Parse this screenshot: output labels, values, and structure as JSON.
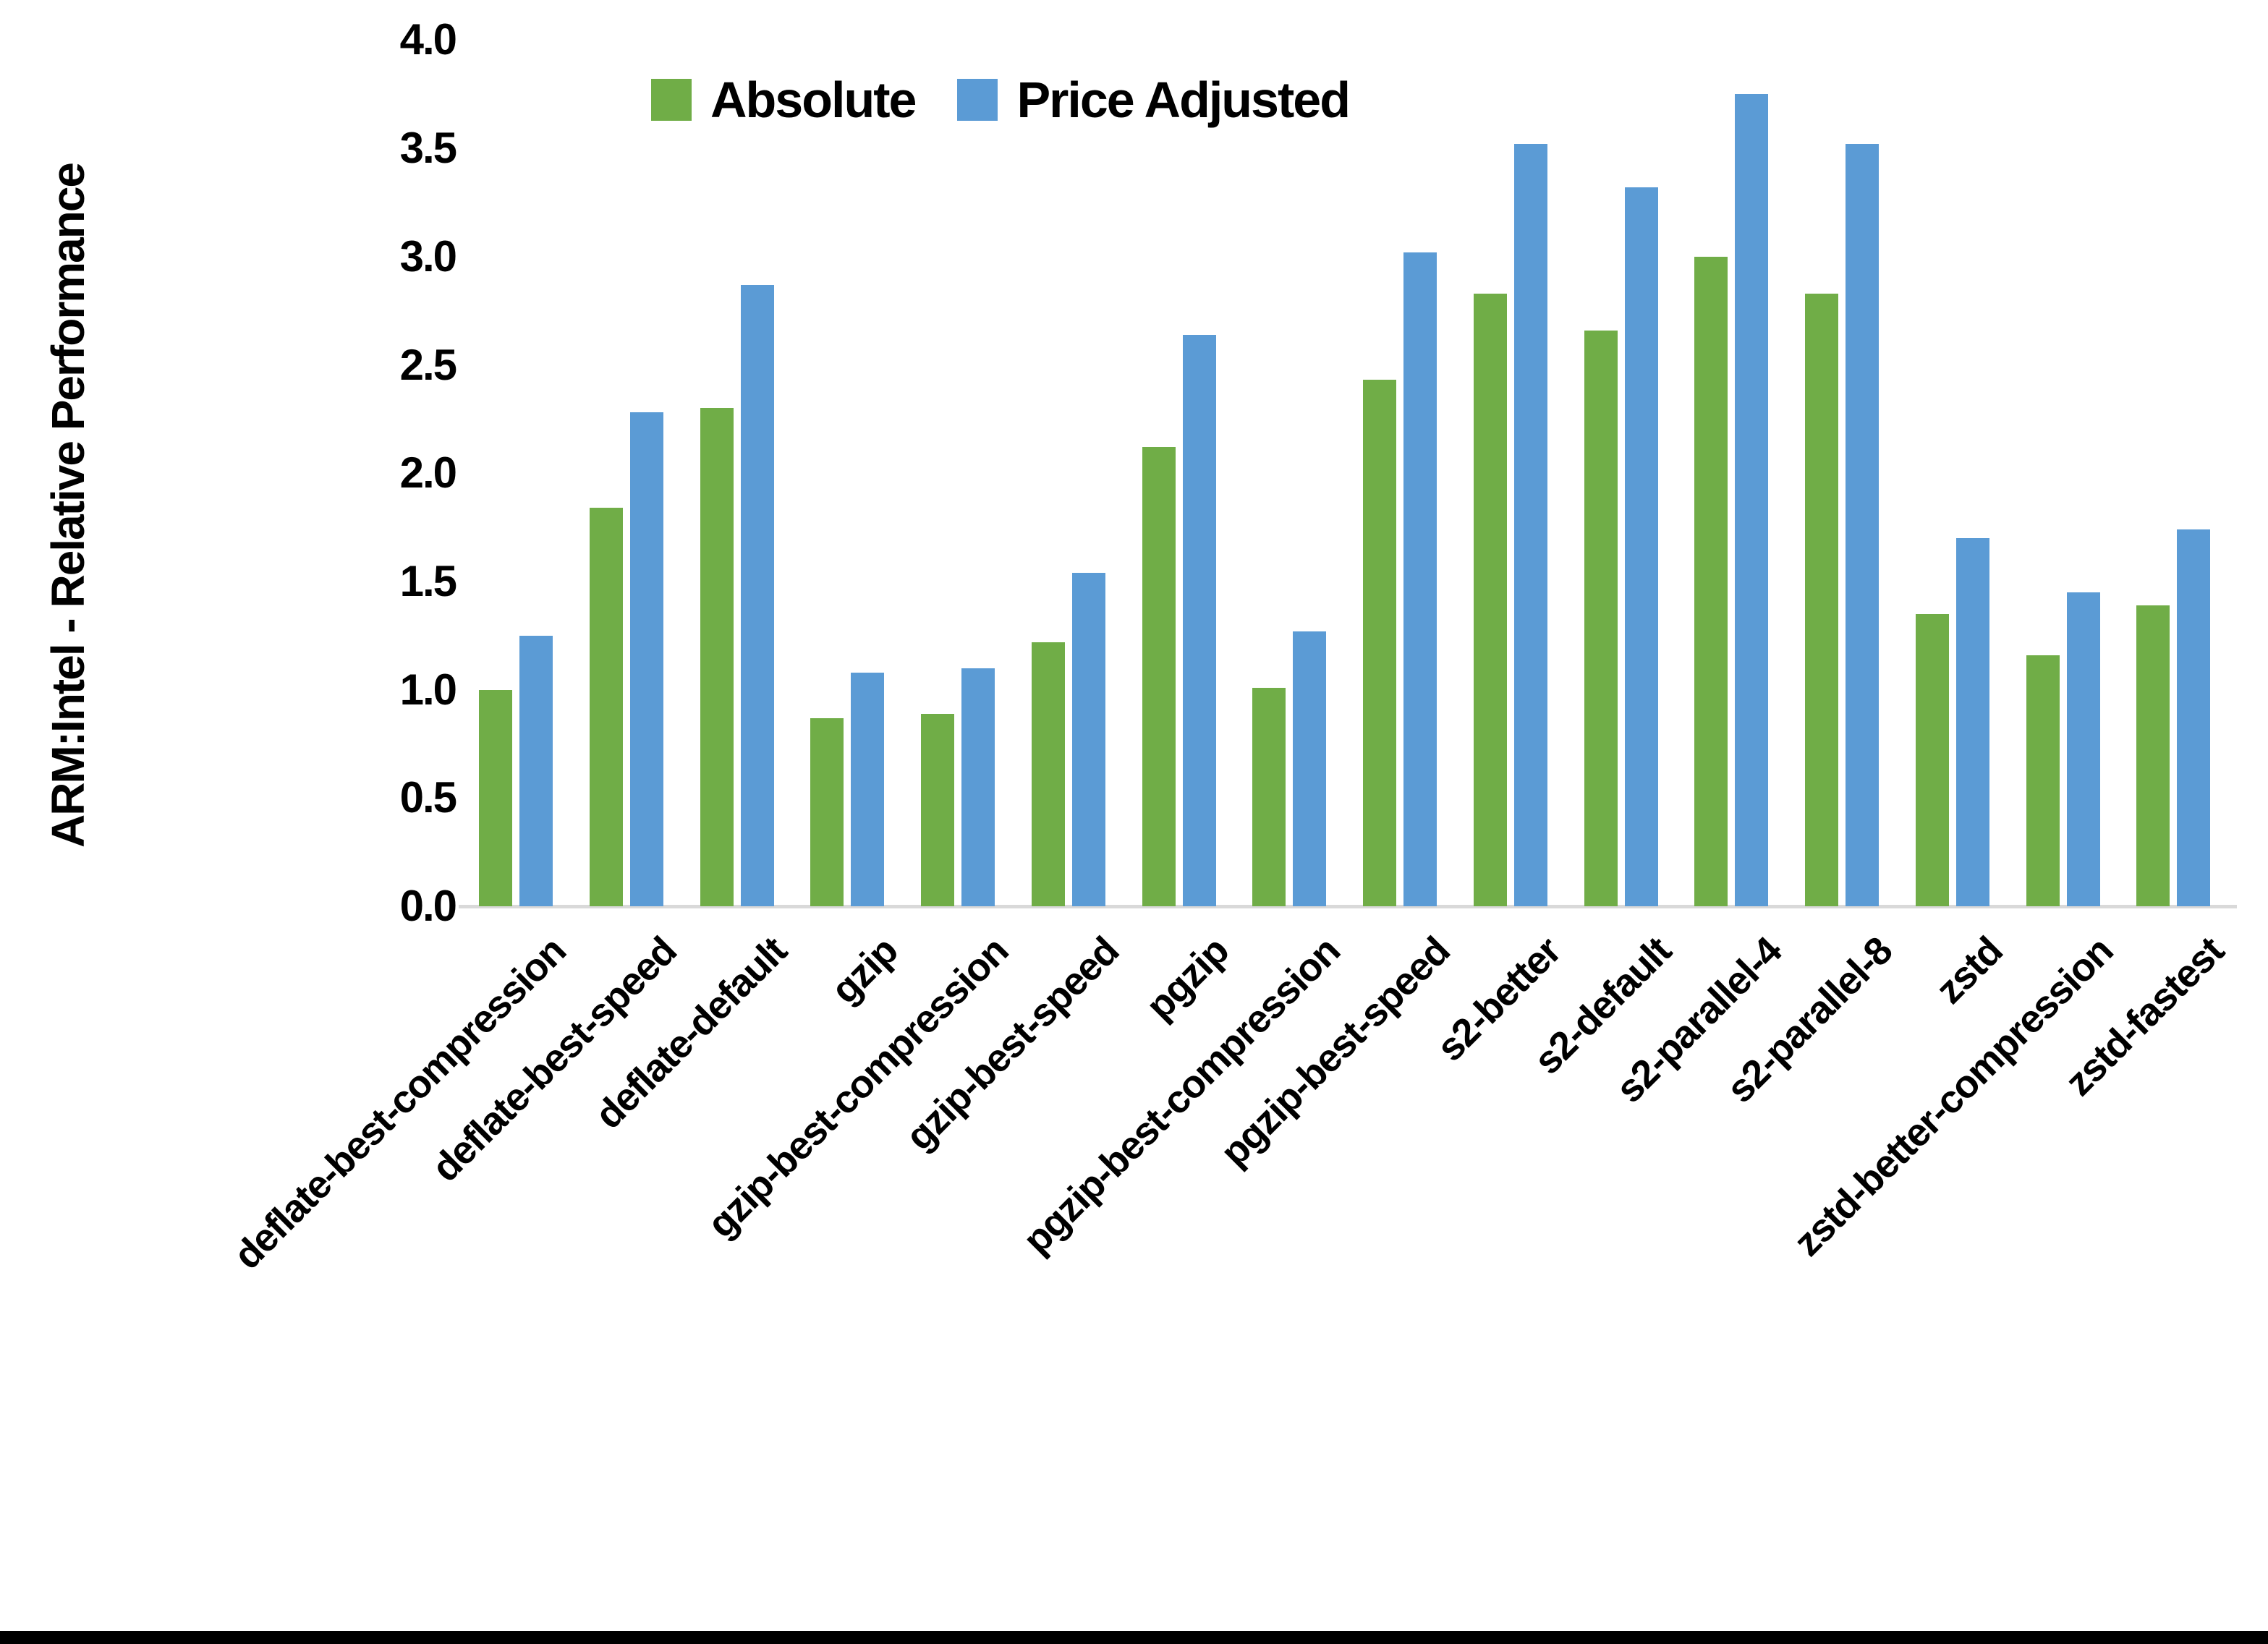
{
  "chart_data": {
    "type": "bar",
    "title": "",
    "xlabel": "",
    "ylabel": "ARM:Intel - Relative Performance",
    "ylim": [
      0.0,
      4.0
    ],
    "ytick_step": 0.5,
    "ytick_labels": [
      "0.0",
      "0.5",
      "1.0",
      "1.5",
      "2.0",
      "2.5",
      "3.0",
      "3.5",
      "4.0"
    ],
    "grid": false,
    "legend_position": "top-center",
    "categories": [
      "deflate-best-compression",
      "deflate-best-speed",
      "deflate-default",
      "gzip",
      "gzip-best-compression",
      "gzip-best-speed",
      "pgzip",
      "pgzip-best-compression",
      "pgzip-best-speed",
      "s2-better",
      "s2-default",
      "s2-parallel-4",
      "s2-parallel-8",
      "zstd",
      "zstd-better-compression",
      "zstd-fastest"
    ],
    "series": [
      {
        "name": "Absolute",
        "color": "#70AD47",
        "values": [
          1.0,
          1.84,
          2.3,
          0.87,
          0.89,
          1.22,
          2.12,
          1.01,
          2.43,
          2.83,
          2.66,
          3.0,
          2.83,
          1.35,
          1.16,
          1.39
        ]
      },
      {
        "name": "Price Adjusted",
        "color": "#5B9BD5",
        "values": [
          1.25,
          2.28,
          2.87,
          1.08,
          1.1,
          1.54,
          2.64,
          1.27,
          3.02,
          3.52,
          3.32,
          3.75,
          3.52,
          1.7,
          1.45,
          1.74
        ]
      }
    ]
  },
  "colors": {
    "background": "#FFFFFF",
    "axis_line": "#D9D9D9",
    "text": "#000000",
    "bottom_bar": "#000000"
  }
}
